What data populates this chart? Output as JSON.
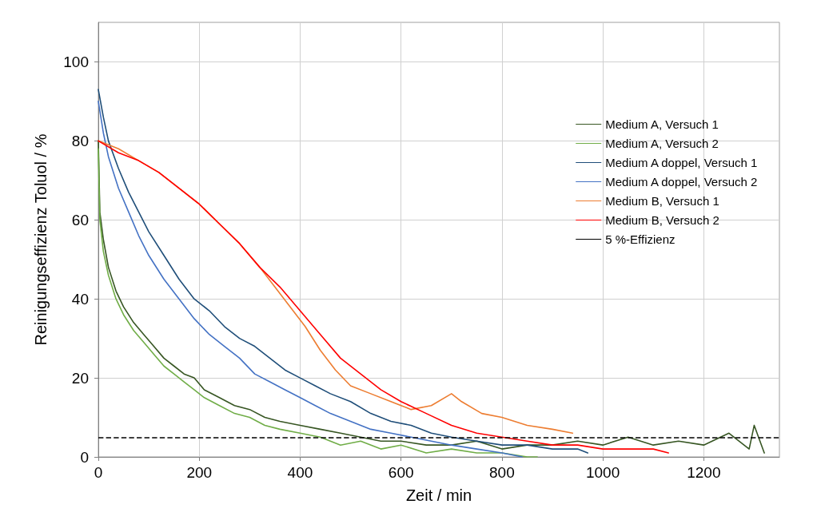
{
  "chart_data": {
    "type": "line",
    "xlabel": "Zeit / min",
    "ylabel": "Reinigungseffizienz Toluol / %",
    "xlim": [
      0,
      1350
    ],
    "xticks": [
      0,
      200,
      400,
      600,
      800,
      1000,
      1200
    ],
    "ylim": [
      0,
      110
    ],
    "yticks": [
      0,
      20,
      40,
      60,
      80,
      100
    ],
    "grid": true,
    "legend": "right",
    "line_style": "solid",
    "marker": "none",
    "series": [
      {
        "name": "Medium A, Versuch 1",
        "color": "#375623",
        "x": [
          0,
          3,
          10,
          20,
          35,
          50,
          70,
          90,
          110,
          130,
          150,
          170,
          190,
          210,
          240,
          270,
          300,
          330,
          360,
          400,
          440,
          480,
          520,
          560,
          600,
          650,
          700,
          750,
          800,
          850,
          900,
          950,
          1000,
          1050,
          1100,
          1150,
          1200,
          1250,
          1290,
          1300,
          1320
        ],
        "values": [
          80,
          62,
          55,
          48,
          42,
          38,
          34,
          31,
          28,
          25,
          23,
          21,
          20,
          17,
          15,
          13,
          12,
          10,
          9,
          8,
          7,
          6,
          5,
          4,
          4,
          3,
          3,
          4,
          2,
          3,
          3,
          4,
          3,
          5,
          3,
          4,
          3,
          6,
          2,
          8,
          1
        ]
      },
      {
        "name": "Medium A, Versuch 2",
        "color": "#70ad47",
        "x": [
          0,
          3,
          10,
          20,
          35,
          50,
          70,
          90,
          110,
          130,
          150,
          170,
          190,
          210,
          240,
          270,
          300,
          330,
          360,
          400,
          440,
          480,
          520,
          560,
          600,
          650,
          700,
          750,
          800,
          850,
          870
        ],
        "values": [
          78,
          60,
          52,
          46,
          40,
          36,
          32,
          29,
          26,
          23,
          21,
          19,
          17,
          15,
          13,
          11,
          10,
          8,
          7,
          6,
          5,
          3,
          4,
          2,
          3,
          1,
          2,
          1,
          1,
          0,
          0
        ]
      },
      {
        "name": "Medium A doppel, Versuch 1",
        "color": "#1f4e79",
        "x": [
          0,
          10,
          20,
          40,
          60,
          80,
          100,
          130,
          160,
          190,
          220,
          250,
          280,
          310,
          340,
          370,
          400,
          430,
          460,
          500,
          540,
          580,
          620,
          660,
          700,
          750,
          800,
          850,
          900,
          950,
          970
        ],
        "values": [
          93,
          86,
          80,
          73,
          67,
          62,
          57,
          51,
          45,
          40,
          37,
          33,
          30,
          28,
          25,
          22,
          20,
          18,
          16,
          14,
          11,
          9,
          8,
          6,
          5,
          4,
          3,
          3,
          2,
          2,
          1
        ]
      },
      {
        "name": "Medium A doppel, Versuch 2",
        "color": "#4472c4",
        "x": [
          0,
          10,
          20,
          40,
          60,
          80,
          100,
          130,
          160,
          190,
          220,
          250,
          280,
          310,
          340,
          370,
          400,
          430,
          460,
          500,
          540,
          580,
          620,
          660,
          700,
          750,
          800,
          840
        ],
        "values": [
          90,
          82,
          76,
          68,
          62,
          56,
          51,
          45,
          40,
          35,
          31,
          28,
          25,
          21,
          19,
          17,
          15,
          13,
          11,
          9,
          7,
          6,
          5,
          4,
          3,
          2,
          1,
          0
        ]
      },
      {
        "name": "Medium B, Versuch 1",
        "color": "#ed7d31",
        "x": [
          0,
          40,
          80,
          120,
          160,
          200,
          240,
          280,
          320,
          350,
          380,
          410,
          440,
          470,
          500,
          540,
          580,
          620,
          660,
          700,
          720,
          760,
          800,
          850,
          900,
          940
        ],
        "values": [
          80,
          78,
          75,
          72,
          68,
          64,
          59,
          54,
          48,
          43,
          38,
          33,
          27,
          22,
          18,
          16,
          14,
          12,
          13,
          16,
          14,
          11,
          10,
          8,
          7,
          6
        ]
      },
      {
        "name": "Medium B, Versuch 2",
        "color": "#ff0000",
        "x": [
          0,
          40,
          80,
          120,
          160,
          200,
          240,
          280,
          320,
          360,
          400,
          440,
          480,
          520,
          560,
          600,
          650,
          700,
          750,
          800,
          850,
          900,
          950,
          1000,
          1050,
          1100,
          1130
        ],
        "values": [
          80,
          77,
          75,
          72,
          68,
          64,
          59,
          54,
          48,
          43,
          37,
          31,
          25,
          21,
          17,
          14,
          11,
          8,
          6,
          5,
          4,
          3,
          3,
          2,
          2,
          2,
          1
        ]
      }
    ],
    "ref_lines": [
      {
        "axis": "y",
        "value": 5,
        "label": "5 %-Effizienz",
        "color": "#000000",
        "line_style": "dashed"
      }
    ]
  }
}
